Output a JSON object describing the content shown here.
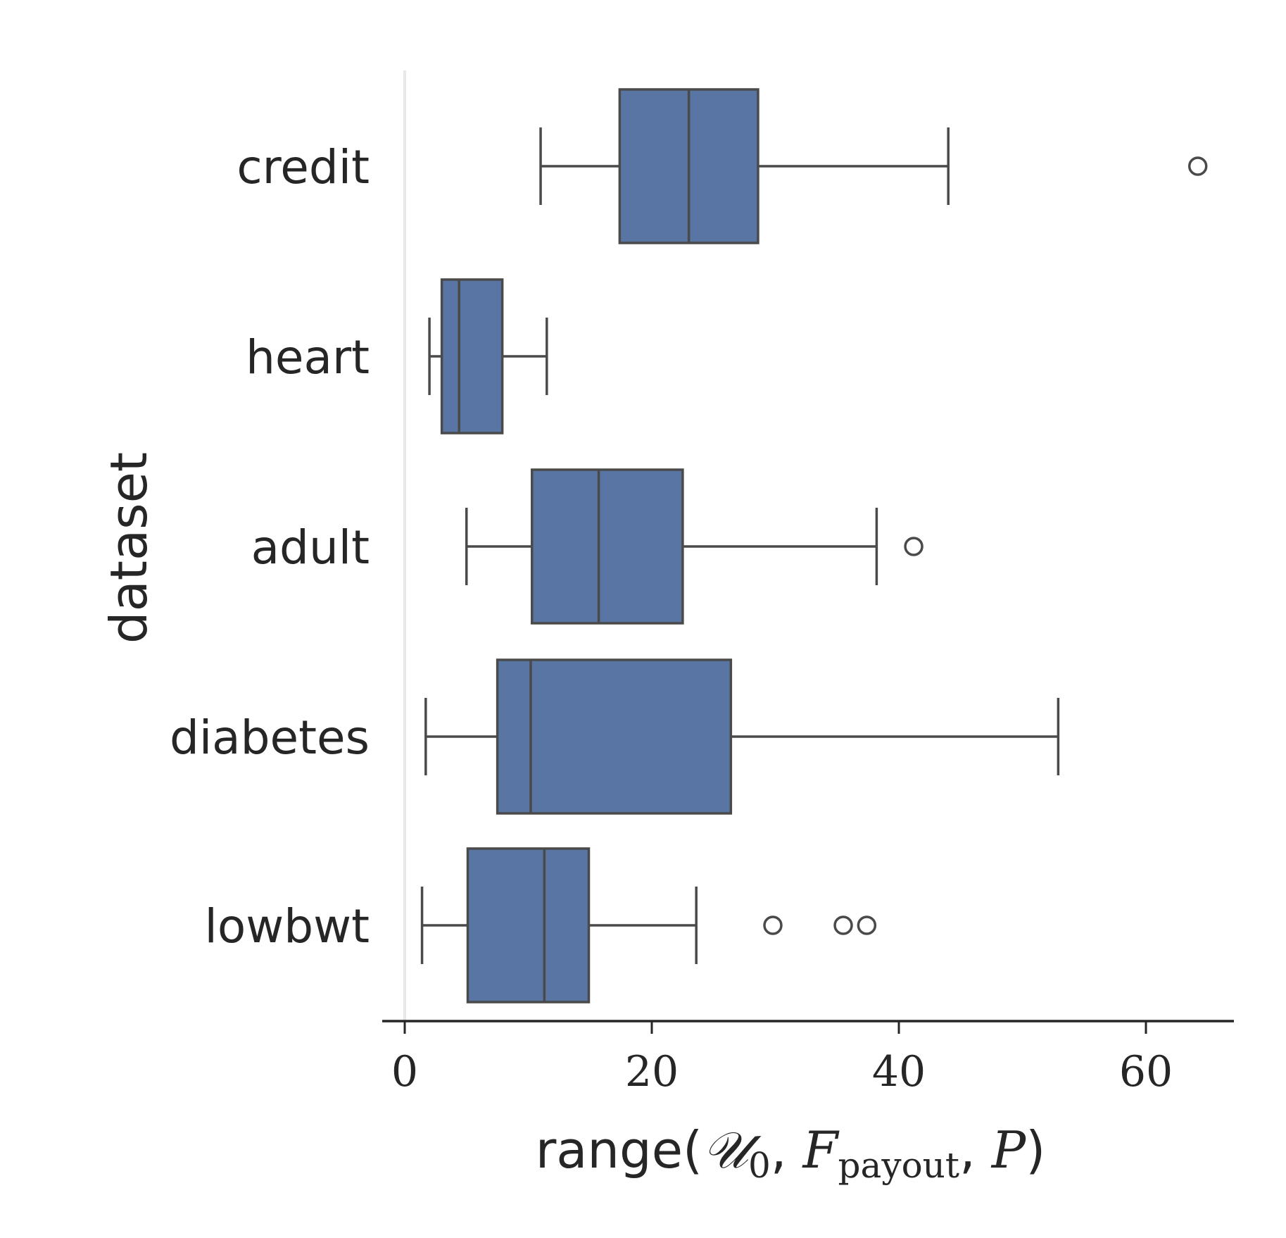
{
  "chart_data": {
    "type": "boxplot",
    "orientation": "horizontal",
    "title": "",
    "xlabel": {
      "prefix": "range(",
      "u_symbol": "𝒰",
      "u_sub": "0",
      "sep1": ", ",
      "f_symbol": "F",
      "f_sub": "payout",
      "sep2": ", ",
      "p_symbol": "P",
      "suffix": ")"
    },
    "ylabel": "dataset",
    "xlim": [
      -1,
      67.5
    ],
    "xticks": [
      0,
      20,
      40,
      60
    ],
    "xtick_labels": [
      "0",
      "20",
      "40",
      "60"
    ],
    "categories": [
      "credit",
      "heart",
      "adult",
      "diabetes",
      "lowbwt"
    ],
    "boxes": [
      {
        "category": "credit",
        "whisker_low": 11.0,
        "q1": 17.4,
        "median": 23.0,
        "q3": 28.6,
        "whisker_high": 44.0,
        "outliers": [
          64.2
        ]
      },
      {
        "category": "heart",
        "whisker_low": 2.0,
        "q1": 3.0,
        "median": 4.4,
        "q3": 7.9,
        "whisker_high": 11.5,
        "outliers": []
      },
      {
        "category": "adult",
        "whisker_low": 5.0,
        "q1": 10.3,
        "median": 15.7,
        "q3": 22.5,
        "whisker_high": 38.2,
        "outliers": [
          41.2
        ]
      },
      {
        "category": "diabetes",
        "whisker_low": 1.7,
        "q1": 7.5,
        "median": 10.2,
        "q3": 26.4,
        "whisker_high": 52.9,
        "outliers": []
      },
      {
        "category": "lowbwt",
        "whisker_low": 1.4,
        "q1": 5.1,
        "median": 11.3,
        "q3": 14.9,
        "whisker_high": 23.6,
        "outliers": [
          29.8,
          35.5,
          37.4
        ]
      }
    ],
    "box_color": "#5975a4",
    "line_color": "#4a4a4a",
    "zero_line_color": "#e8e8e8",
    "axis_color": "#262626"
  }
}
